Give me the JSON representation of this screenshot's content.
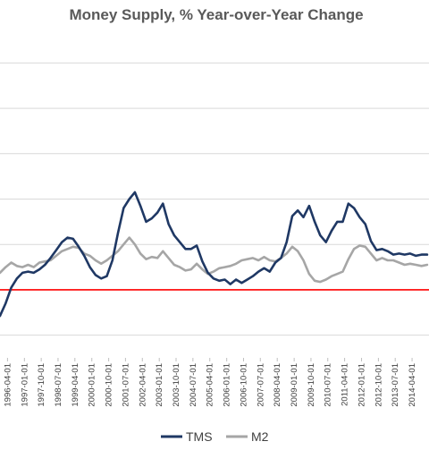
{
  "chart_data": {
    "type": "line",
    "title": "Money Supply, % Year-over-Year Change",
    "xlabel": "",
    "ylabel": "",
    "ylim": [
      -6,
      22
    ],
    "y_gridlines": [
      -4,
      0,
      4,
      8,
      12,
      16,
      20
    ],
    "y_tick_labels_visible": false,
    "grid": "horizontal",
    "legend_position": "bottom",
    "reference_line": {
      "y": 0,
      "color": "#ff0000"
    },
    "x_tick_labels": [
      "1996-04-01",
      "1997-01-01",
      "1997-10-01",
      "1998-07-01",
      "1999-04-01",
      "2000-01-01",
      "2000-10-01",
      "2001-07-01",
      "2002-04-01",
      "2003-01-01",
      "2003-10-01",
      "2004-07-01",
      "2005-04-01",
      "2006-01-01",
      "2006-10-01",
      "2007-07-01",
      "2008-04-01",
      "2009-01-01",
      "2009-10-01",
      "2010-07-01",
      "2011-04-01",
      "2012-01-01",
      "2012-10-01",
      "2013-07-01",
      "2014-04-01"
    ],
    "x_range": [
      "1995-12-01",
      "2015-01-01"
    ],
    "series": [
      {
        "name": "TMS",
        "color": "#1f3864",
        "points": [
          [
            "1995-12-01",
            -2.3
          ],
          [
            "1996-03-01",
            -1.2
          ],
          [
            "1996-06-01",
            0.2
          ],
          [
            "1996-09-01",
            1.0
          ],
          [
            "1996-12-01",
            1.5
          ],
          [
            "1997-03-01",
            1.6
          ],
          [
            "1997-06-01",
            1.5
          ],
          [
            "1997-09-01",
            1.8
          ],
          [
            "1997-12-01",
            2.2
          ],
          [
            "1998-03-01",
            2.8
          ],
          [
            "1998-06-01",
            3.5
          ],
          [
            "1998-09-01",
            4.2
          ],
          [
            "1998-12-01",
            4.6
          ],
          [
            "1999-03-01",
            4.5
          ],
          [
            "1999-06-01",
            3.8
          ],
          [
            "1999-09-01",
            3.0
          ],
          [
            "1999-12-01",
            2.0
          ],
          [
            "2000-03-01",
            1.3
          ],
          [
            "2000-06-01",
            1.0
          ],
          [
            "2000-09-01",
            1.2
          ],
          [
            "2000-12-01",
            2.6
          ],
          [
            "2001-03-01",
            5.0
          ],
          [
            "2001-06-01",
            7.2
          ],
          [
            "2001-09-01",
            8.0
          ],
          [
            "2001-12-01",
            8.6
          ],
          [
            "2002-03-01",
            7.4
          ],
          [
            "2002-06-01",
            6.0
          ],
          [
            "2002-09-01",
            6.3
          ],
          [
            "2002-12-01",
            6.8
          ],
          [
            "2003-03-01",
            7.6
          ],
          [
            "2003-06-01",
            5.8
          ],
          [
            "2003-09-01",
            4.8
          ],
          [
            "2003-12-01",
            4.2
          ],
          [
            "2004-03-01",
            3.6
          ],
          [
            "2004-06-01",
            3.6
          ],
          [
            "2004-09-01",
            3.9
          ],
          [
            "2004-12-01",
            2.5
          ],
          [
            "2005-03-01",
            1.5
          ],
          [
            "2005-06-01",
            1.0
          ],
          [
            "2005-09-01",
            0.8
          ],
          [
            "2005-12-01",
            0.9
          ],
          [
            "2006-03-01",
            0.5
          ],
          [
            "2006-06-01",
            0.9
          ],
          [
            "2006-09-01",
            0.6
          ],
          [
            "2006-12-01",
            0.9
          ],
          [
            "2007-03-01",
            1.2
          ],
          [
            "2007-06-01",
            1.6
          ],
          [
            "2007-09-01",
            1.9
          ],
          [
            "2007-12-01",
            1.6
          ],
          [
            "2008-03-01",
            2.4
          ],
          [
            "2008-06-01",
            2.8
          ],
          [
            "2008-09-01",
            4.2
          ],
          [
            "2008-12-01",
            6.5
          ],
          [
            "2009-03-01",
            7.0
          ],
          [
            "2009-06-01",
            6.4
          ],
          [
            "2009-09-01",
            7.4
          ],
          [
            "2009-12-01",
            6.0
          ],
          [
            "2010-03-01",
            4.8
          ],
          [
            "2010-06-01",
            4.2
          ],
          [
            "2010-09-01",
            5.2
          ],
          [
            "2010-12-01",
            6.0
          ],
          [
            "2011-03-01",
            6.0
          ],
          [
            "2011-06-01",
            7.6
          ],
          [
            "2011-09-01",
            7.2
          ],
          [
            "2011-12-01",
            6.4
          ],
          [
            "2012-03-01",
            5.8
          ],
          [
            "2012-06-01",
            4.3
          ],
          [
            "2012-09-01",
            3.5
          ],
          [
            "2012-12-01",
            3.6
          ],
          [
            "2013-03-01",
            3.4
          ],
          [
            "2013-06-01",
            3.1
          ],
          [
            "2013-09-01",
            3.2
          ],
          [
            "2013-12-01",
            3.1
          ],
          [
            "2014-03-01",
            3.2
          ],
          [
            "2014-06-01",
            3.0
          ],
          [
            "2014-09-01",
            3.1
          ],
          [
            "2014-12-01",
            3.1
          ]
        ]
      },
      {
        "name": "M2",
        "color": "#a6a6a6",
        "points": [
          [
            "1995-12-01",
            1.5
          ],
          [
            "1996-03-01",
            2.0
          ],
          [
            "1996-06-01",
            2.4
          ],
          [
            "1996-09-01",
            2.1
          ],
          [
            "1996-12-01",
            2.0
          ],
          [
            "1997-03-01",
            2.2
          ],
          [
            "1997-06-01",
            2.0
          ],
          [
            "1997-09-01",
            2.4
          ],
          [
            "1997-12-01",
            2.5
          ],
          [
            "1998-03-01",
            2.6
          ],
          [
            "1998-06-01",
            3.0
          ],
          [
            "1998-09-01",
            3.4
          ],
          [
            "1998-12-01",
            3.6
          ],
          [
            "1999-03-01",
            3.8
          ],
          [
            "1999-06-01",
            3.7
          ],
          [
            "1999-09-01",
            3.2
          ],
          [
            "1999-12-01",
            3.0
          ],
          [
            "2000-03-01",
            2.6
          ],
          [
            "2000-06-01",
            2.3
          ],
          [
            "2000-09-01",
            2.6
          ],
          [
            "2000-12-01",
            3.0
          ],
          [
            "2001-03-01",
            3.4
          ],
          [
            "2001-06-01",
            4.0
          ],
          [
            "2001-09-01",
            4.6
          ],
          [
            "2001-12-01",
            4.0
          ],
          [
            "2002-03-01",
            3.2
          ],
          [
            "2002-06-01",
            2.7
          ],
          [
            "2002-09-01",
            2.9
          ],
          [
            "2002-12-01",
            2.8
          ],
          [
            "2003-03-01",
            3.4
          ],
          [
            "2003-06-01",
            2.8
          ],
          [
            "2003-09-01",
            2.2
          ],
          [
            "2003-12-01",
            2.0
          ],
          [
            "2004-03-01",
            1.7
          ],
          [
            "2004-06-01",
            1.8
          ],
          [
            "2004-09-01",
            2.3
          ],
          [
            "2004-12-01",
            1.8
          ],
          [
            "2005-03-01",
            1.4
          ],
          [
            "2005-06-01",
            1.6
          ],
          [
            "2005-09-01",
            1.9
          ],
          [
            "2005-12-01",
            2.0
          ],
          [
            "2006-03-01",
            2.1
          ],
          [
            "2006-06-01",
            2.3
          ],
          [
            "2006-09-01",
            2.6
          ],
          [
            "2006-12-01",
            2.7
          ],
          [
            "2007-03-01",
            2.8
          ],
          [
            "2007-06-01",
            2.6
          ],
          [
            "2007-09-01",
            2.9
          ],
          [
            "2007-12-01",
            2.6
          ],
          [
            "2008-03-01",
            2.5
          ],
          [
            "2008-06-01",
            2.8
          ],
          [
            "2008-09-01",
            3.2
          ],
          [
            "2008-12-01",
            3.8
          ],
          [
            "2009-03-01",
            3.4
          ],
          [
            "2009-06-01",
            2.6
          ],
          [
            "2009-09-01",
            1.4
          ],
          [
            "2009-12-01",
            0.8
          ],
          [
            "2010-03-01",
            0.7
          ],
          [
            "2010-06-01",
            0.9
          ],
          [
            "2010-09-01",
            1.2
          ],
          [
            "2010-12-01",
            1.4
          ],
          [
            "2011-03-01",
            1.6
          ],
          [
            "2011-06-01",
            2.7
          ],
          [
            "2011-09-01",
            3.6
          ],
          [
            "2011-12-01",
            3.9
          ],
          [
            "2012-03-01",
            3.8
          ],
          [
            "2012-06-01",
            3.2
          ],
          [
            "2012-09-01",
            2.6
          ],
          [
            "2012-12-01",
            2.8
          ],
          [
            "2013-03-01",
            2.6
          ],
          [
            "2013-06-01",
            2.6
          ],
          [
            "2013-09-01",
            2.4
          ],
          [
            "2013-12-01",
            2.2
          ],
          [
            "2014-03-01",
            2.3
          ],
          [
            "2014-06-01",
            2.2
          ],
          [
            "2014-09-01",
            2.1
          ],
          [
            "2014-12-01",
            2.2
          ]
        ]
      }
    ]
  }
}
